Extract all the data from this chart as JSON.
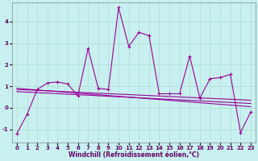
{
  "xlabel": "Windchill (Refroidissement éolien,°C)",
  "background_color": "#c8f0f0",
  "grid_color": "#aaddcc",
  "line_color": "#990099",
  "x_ticks": [
    0,
    1,
    2,
    3,
    4,
    5,
    6,
    7,
    8,
    9,
    10,
    11,
    12,
    13,
    14,
    15,
    16,
    17,
    18,
    19,
    20,
    21,
    22,
    23
  ],
  "y_ticks": [
    -1,
    0,
    1,
    2,
    3,
    4
  ],
  "ylim": [
    -1.6,
    4.9
  ],
  "xlim": [
    -0.5,
    23.5
  ],
  "series1_x": [
    0,
    1,
    2,
    3,
    4,
    5,
    6,
    7,
    8,
    9,
    10,
    11,
    12,
    13,
    14,
    15,
    16,
    17,
    18,
    19,
    20,
    21,
    22,
    23
  ],
  "series1_y": [
    -1.2,
    -0.3,
    0.85,
    1.15,
    1.2,
    1.1,
    0.55,
    2.75,
    0.9,
    0.85,
    4.65,
    2.85,
    3.5,
    3.35,
    0.65,
    0.65,
    0.65,
    2.4,
    0.45,
    1.35,
    1.4,
    1.55,
    -1.15,
    -0.2
  ],
  "series2_x": [
    0,
    23
  ],
  "series2_y": [
    0.9,
    0.05
  ],
  "series3_x": [
    0,
    23
  ],
  "series3_y": [
    0.85,
    0.35
  ],
  "series4_x": [
    0,
    23
  ],
  "series4_y": [
    0.75,
    0.2
  ],
  "marker": "+",
  "markersize": 3,
  "linewidth": 0.8,
  "tick_fontsize": 5,
  "xlabel_fontsize": 5.5
}
